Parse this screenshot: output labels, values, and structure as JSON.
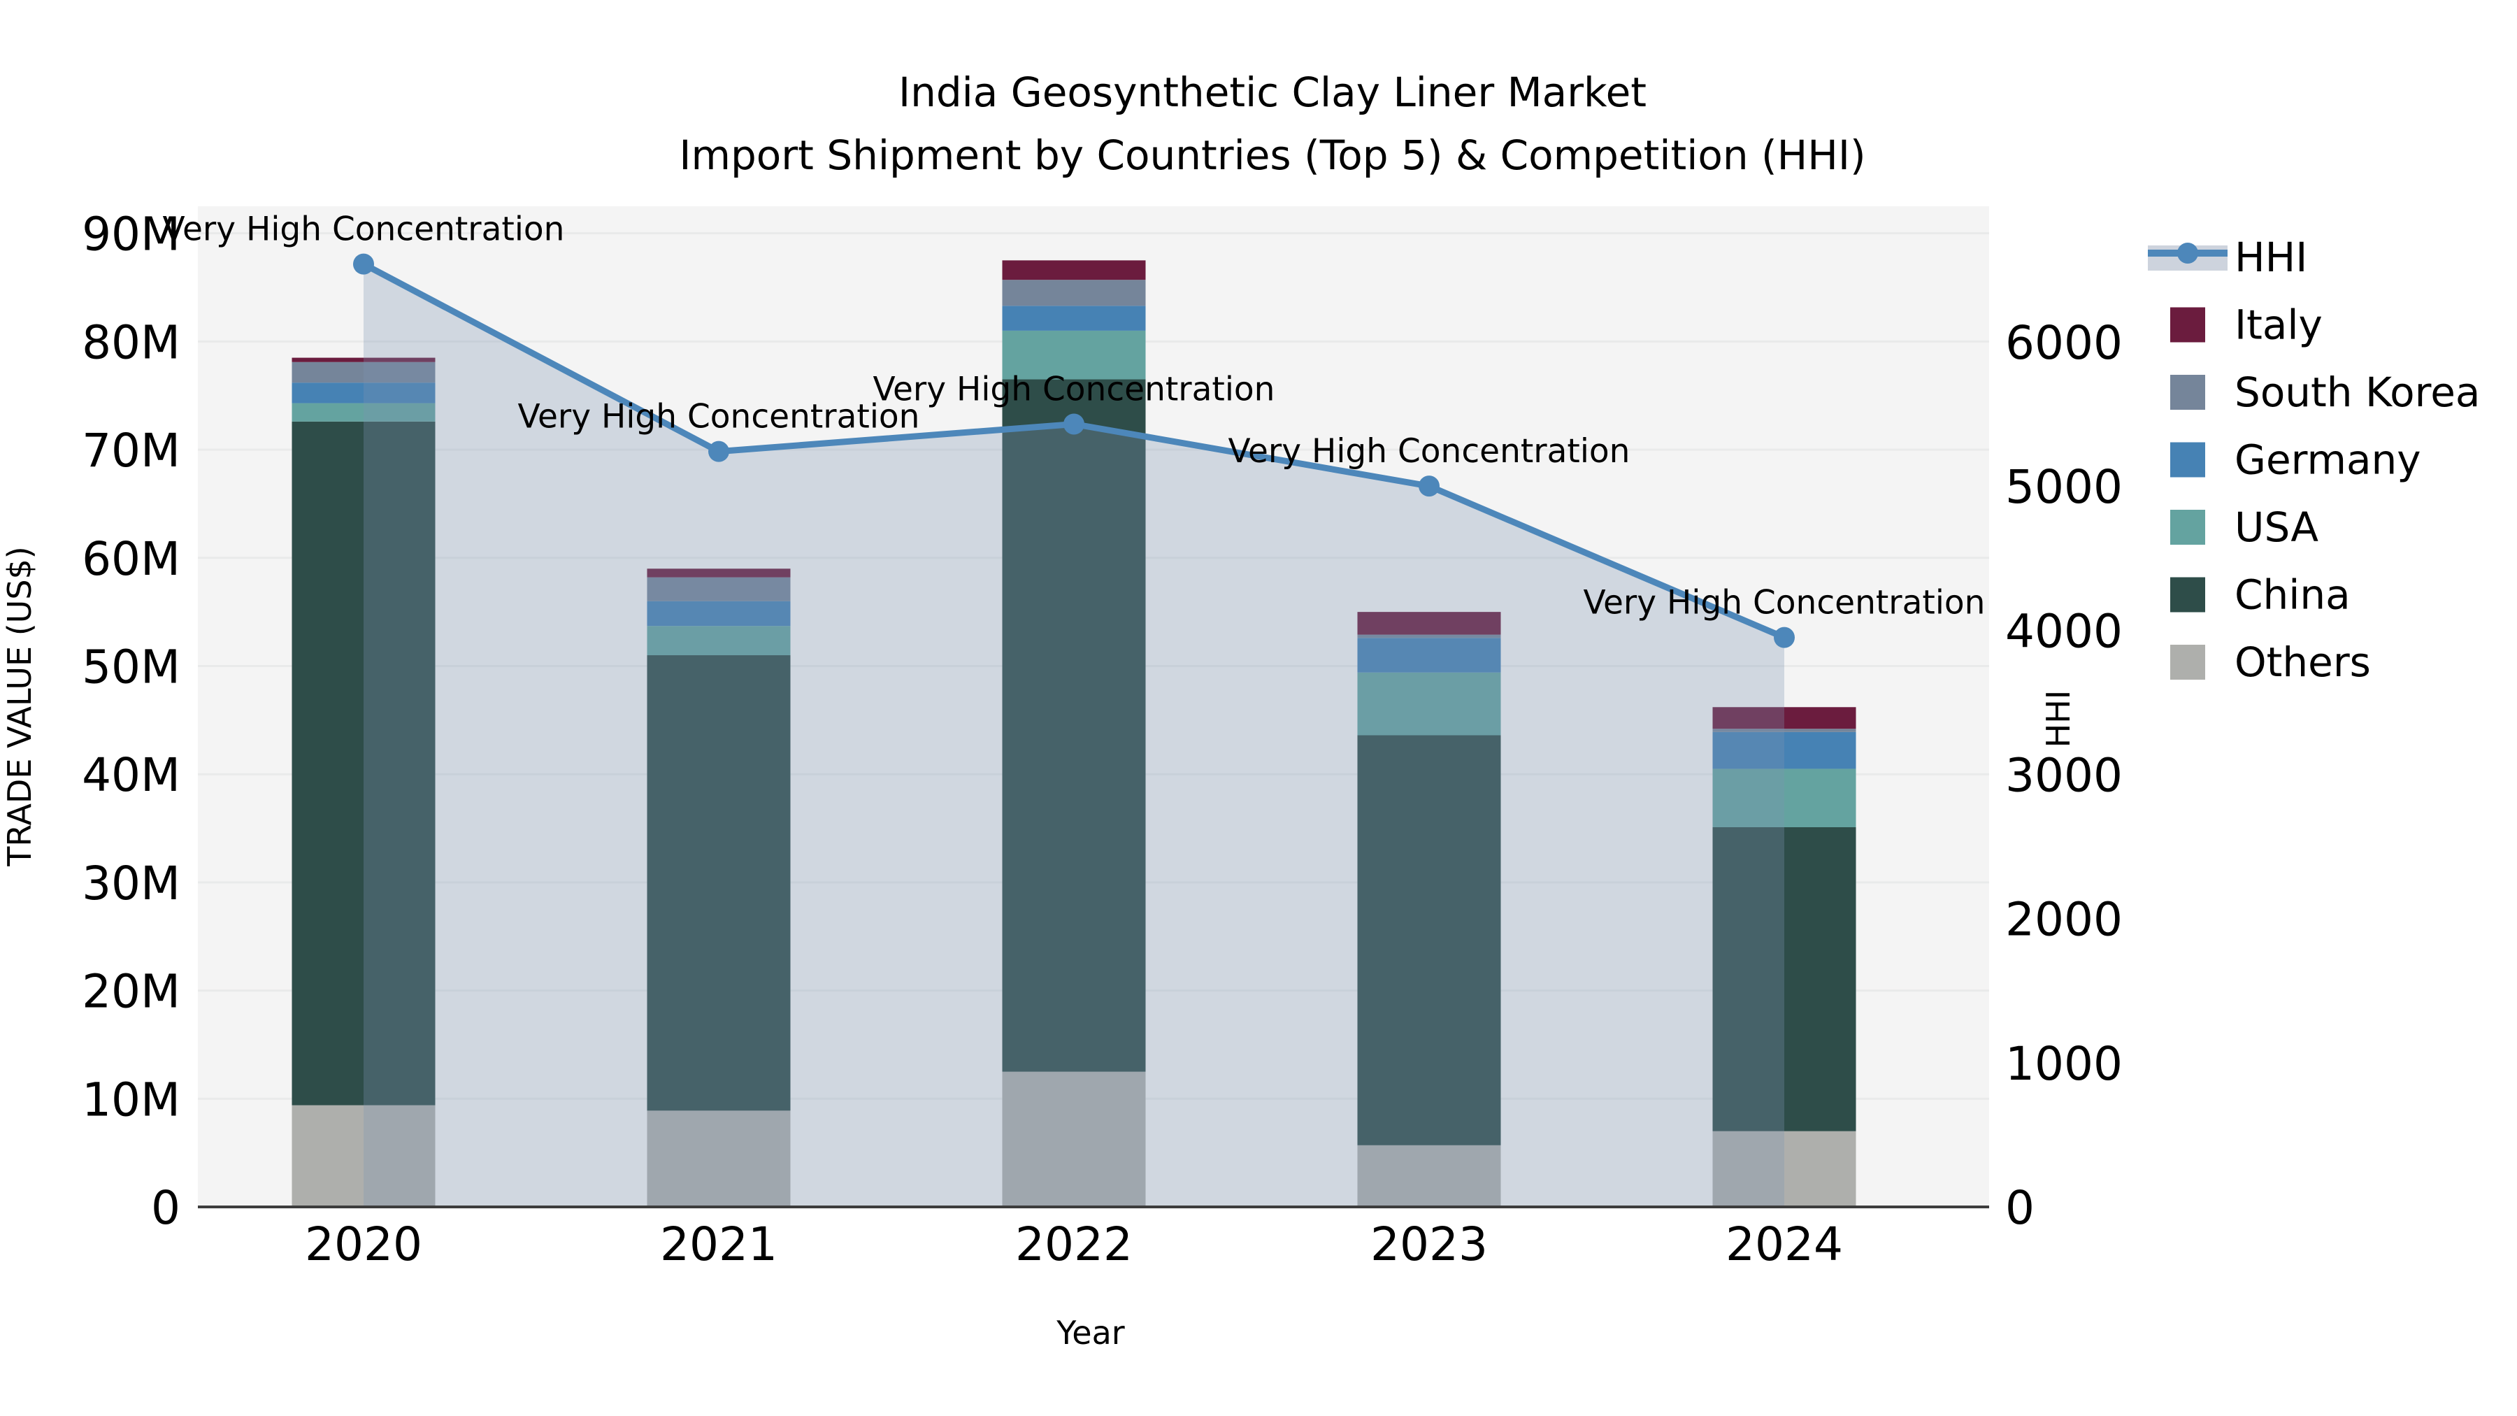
{
  "title": {
    "line1": "India Geosynthetic Clay Liner Market",
    "line2": "Import Shipment by Countries (Top 5) & Competition (HHI)"
  },
  "axes": {
    "x_title": "Year",
    "y_left_title": "TRADE VALUE (US$)",
    "y_right_title": "HHI",
    "y_left_ticks": [
      {
        "label": "0",
        "value": 0
      },
      {
        "label": "10M",
        "value": 10
      },
      {
        "label": "20M",
        "value": 20
      },
      {
        "label": "30M",
        "value": 30
      },
      {
        "label": "40M",
        "value": 40
      },
      {
        "label": "50M",
        "value": 50
      },
      {
        "label": "60M",
        "value": 60
      },
      {
        "label": "70M",
        "value": 70
      },
      {
        "label": "80M",
        "value": 80
      },
      {
        "label": "90M",
        "value": 90
      }
    ],
    "y_right_ticks": [
      {
        "label": "0",
        "value": 0
      },
      {
        "label": "1000",
        "value": 1000
      },
      {
        "label": "2000",
        "value": 2000
      },
      {
        "label": "3000",
        "value": 3000
      },
      {
        "label": "4000",
        "value": 4000
      },
      {
        "label": "5000",
        "value": 5000
      },
      {
        "label": "6000",
        "value": 6000
      }
    ]
  },
  "legend": {
    "items": [
      "HHI",
      "Italy",
      "South Korea",
      "Germany",
      "USA",
      "China",
      "Others"
    ]
  },
  "colors": {
    "plot_background": "#f4f4f4",
    "gridline": "#e9eaea",
    "axis_spine": "#3d3d3d",
    "hhi_line": "#4d87ba",
    "hhi_area": "rgba(125,148,180,0.30)",
    "hhi_legend_band": "#cdd3dd"
  },
  "chart_data": {
    "type": "bar",
    "subtype": "stacked-bars-with-line",
    "title": "India Geosynthetic Clay Liner Market — Import Shipment by Countries (Top 5) & Competition (HHI)",
    "xlabel": "Year",
    "ylabel_left": "TRADE VALUE (US$)",
    "ylabel_right": "HHI",
    "categories": [
      "2020",
      "2021",
      "2022",
      "2023",
      "2024"
    ],
    "value_unit": "millions USD",
    "ylim_left": [
      0,
      92.5
    ],
    "ylim_right": [
      0,
      6940
    ],
    "grid": "horizontal",
    "legend_position": "right",
    "series": [
      {
        "name": "Others",
        "type": "bar",
        "color": "#aeafac",
        "values": [
          9.4,
          8.9,
          12.5,
          5.7,
          7.0
        ]
      },
      {
        "name": "China",
        "type": "bar",
        "color": "#2e4d49",
        "values": [
          63.2,
          42.1,
          64.0,
          37.9,
          28.1
        ]
      },
      {
        "name": "USA",
        "type": "bar",
        "color": "#64a3a0",
        "values": [
          1.7,
          2.7,
          4.5,
          5.8,
          5.4
        ]
      },
      {
        "name": "Germany",
        "type": "bar",
        "color": "#4682b4",
        "values": [
          1.9,
          2.3,
          2.3,
          3.2,
          3.4
        ]
      },
      {
        "name": "South Korea",
        "type": "bar",
        "color": "#75859a",
        "values": [
          1.9,
          2.2,
          2.4,
          0.3,
          0.3
        ]
      },
      {
        "name": "Italy",
        "type": "bar",
        "color": "#6b1c3e",
        "values": [
          0.4,
          0.8,
          1.8,
          2.1,
          2.0
        ]
      }
    ],
    "bar_totals": [
      78.5,
      59.0,
      87.5,
      55.0,
      46.2
    ],
    "hhi": {
      "name": "HHI",
      "axis": "right",
      "color": "#4d87ba",
      "area_color": "rgba(125,148,180,0.30)",
      "values": [
        6540,
        5240,
        5430,
        5000,
        3950
      ]
    },
    "annotations": [
      {
        "text": "Very High Concentration",
        "category": "2020"
      },
      {
        "text": "Very High Concentration",
        "category": "2021"
      },
      {
        "text": "Very High Concentration",
        "category": "2022"
      },
      {
        "text": "Very High Concentration",
        "category": "2023"
      },
      {
        "text": "Very High Concentration",
        "category": "2024"
      }
    ]
  }
}
